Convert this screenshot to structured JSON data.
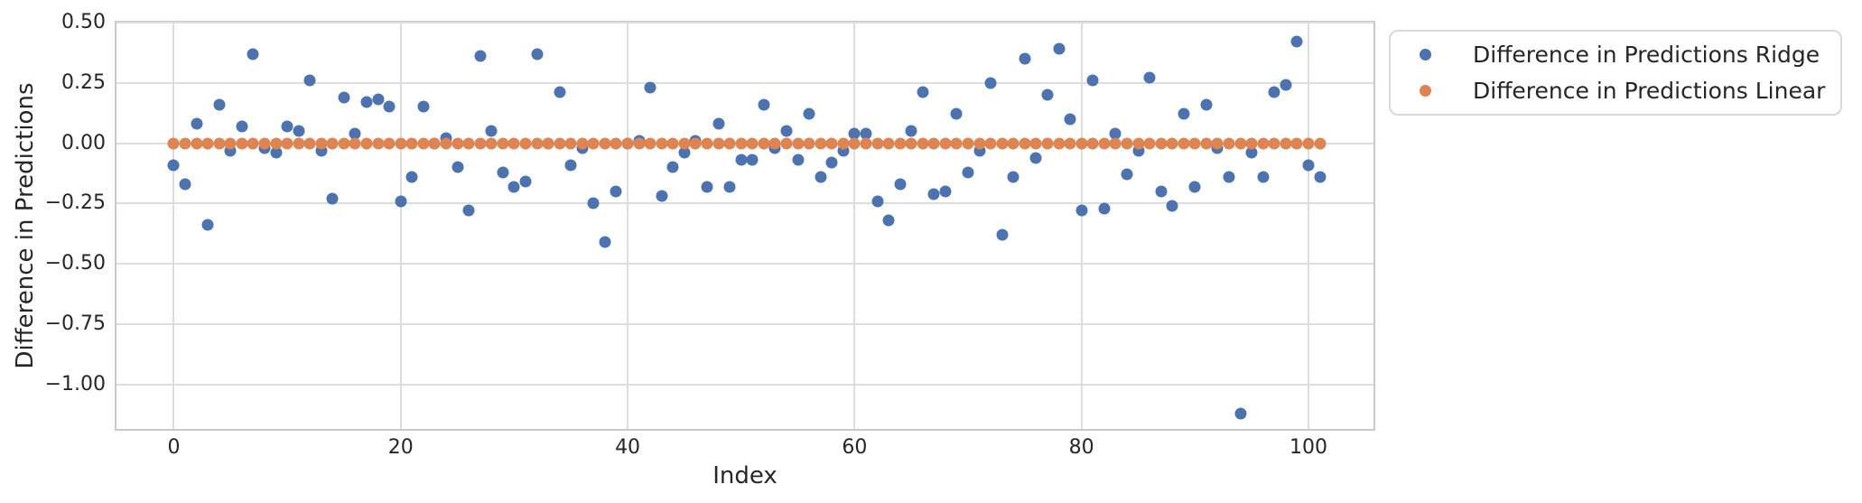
{
  "colors": {
    "ridge_blue": "#4C72B0",
    "linear_orange": "#DD8452",
    "grid": "#dddddd",
    "spine": "#c9c9c9",
    "text": "#262626",
    "background": "#ffffff",
    "legend_border": "#d9d9d9"
  },
  "legend": {
    "entries": [
      {
        "label": "Difference in Predictions Ridge",
        "color": "#4C72B0"
      },
      {
        "label": "Difference in Predictions Linear",
        "color": "#DD8452"
      }
    ]
  },
  "chart_data": {
    "type": "scatter",
    "title": "",
    "xlabel": "Index",
    "ylabel": "Difference in Predictions",
    "grid": true,
    "legend_position": "outside upper right",
    "n_points": 102,
    "xlim": [
      -5.05,
      106.05
    ],
    "ylim": [
      -1.2,
      0.5
    ],
    "xticks": [
      {
        "value": 0,
        "label": "0"
      },
      {
        "value": 20,
        "label": "20"
      },
      {
        "value": 40,
        "label": "40"
      },
      {
        "value": 60,
        "label": "60"
      },
      {
        "value": 80,
        "label": "80"
      },
      {
        "value": 100,
        "label": "100"
      }
    ],
    "yticks": [
      {
        "value": 0.5,
        "label": "0.50"
      },
      {
        "value": 0.25,
        "label": "0.25"
      },
      {
        "value": 0.0,
        "label": "0.00"
      },
      {
        "value": -0.25,
        "label": "−0.25"
      },
      {
        "value": -0.5,
        "label": "−0.50"
      },
      {
        "value": -0.75,
        "label": "−0.75"
      },
      {
        "value": -1.0,
        "label": "−1.00"
      }
    ],
    "series": [
      {
        "name": "Difference in Predictions Ridge",
        "color": "#4C72B0",
        "marker": "circle",
        "x_start": 0,
        "values": [
          -0.09,
          -0.17,
          0.08,
          -0.34,
          0.16,
          -0.03,
          0.07,
          0.37,
          -0.02,
          -0.04,
          0.07,
          0.05,
          0.26,
          -0.03,
          -0.23,
          0.19,
          0.04,
          0.17,
          0.18,
          0.15,
          -0.24,
          -0.14,
          0.15,
          0.0,
          0.02,
          -0.1,
          -0.28,
          0.36,
          0.05,
          -0.12,
          -0.18,
          -0.16,
          0.37,
          0.0,
          0.21,
          -0.09,
          -0.02,
          -0.25,
          -0.41,
          -0.2,
          0.0,
          0.01,
          0.23,
          -0.22,
          -0.1,
          -0.04,
          0.01,
          -0.18,
          0.08,
          -0.18,
          -0.07,
          -0.07,
          0.16,
          -0.02,
          0.05,
          -0.07,
          0.12,
          -0.14,
          -0.08,
          -0.03,
          0.04,
          0.04,
          -0.24,
          -0.32,
          -0.17,
          0.05,
          0.21,
          -0.21,
          -0.2,
          0.12,
          -0.12,
          -0.03,
          0.25,
          -0.38,
          -0.14,
          0.35,
          -0.06,
          0.2,
          0.39,
          0.1,
          -0.28,
          0.26,
          -0.27,
          0.04,
          -0.13,
          -0.03,
          0.27,
          -0.2,
          -0.26,
          0.12,
          -0.18,
          0.16,
          -0.02,
          -0.14,
          -1.12,
          -0.04,
          -0.14,
          0.21,
          0.24,
          0.42,
          -0.09,
          -0.14
        ]
      },
      {
        "name": "Difference in Predictions Linear",
        "color": "#DD8452",
        "marker": "circle",
        "x_start": 0,
        "count": 102,
        "constant_value": 0.0
      }
    ]
  }
}
